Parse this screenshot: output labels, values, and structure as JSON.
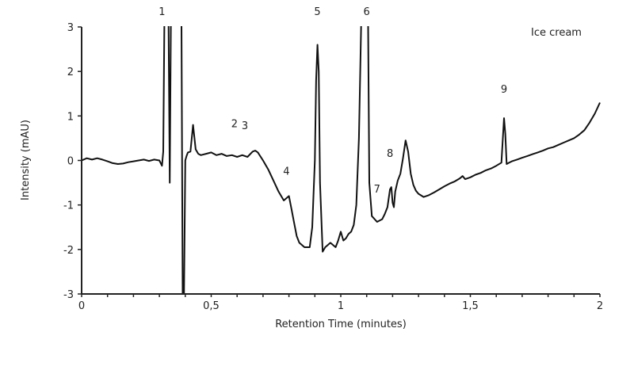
{
  "chart_data": {
    "type": "line",
    "title": "",
    "annotation": "Ice cream",
    "xlabel": "Retention Time (minutes)",
    "ylabel": "Intensity (mAU)",
    "xlim": [
      0,
      2
    ],
    "ylim": [
      -3,
      3
    ],
    "x_ticks": [
      "0",
      "0,5",
      "1",
      "1,5",
      "2"
    ],
    "x_tick_values": [
      0,
      0.5,
      1,
      1.5,
      2
    ],
    "x_minor_step": 0.1,
    "y_ticks": [
      "3",
      "2",
      "1",
      "0",
      "-1",
      "-2",
      "-3"
    ],
    "y_tick_values": [
      3,
      2,
      1,
      0,
      -1,
      -2,
      -3
    ],
    "grid": false,
    "legend": null,
    "peak_labels": [
      {
        "label": "1",
        "x": 0.31,
        "y": 3.3
      },
      {
        "label": "2",
        "x": 0.59,
        "y": 0.75
      },
      {
        "label": "3",
        "x": 0.63,
        "y": 0.7
      },
      {
        "label": "4",
        "x": 0.79,
        "y": -0.32
      },
      {
        "label": "5",
        "x": 0.91,
        "y": 3.3
      },
      {
        "label": "6",
        "x": 1.1,
        "y": 3.3
      },
      {
        "label": "7",
        "x": 1.14,
        "y": -0.72
      },
      {
        "label": "8",
        "x": 1.19,
        "y": 0.08
      },
      {
        "label": "9",
        "x": 1.63,
        "y": 1.52
      }
    ],
    "series": [
      {
        "name": "Ice cream",
        "color": "#111111",
        "x": [
          0.0,
          0.02,
          0.04,
          0.06,
          0.08,
          0.1,
          0.12,
          0.14,
          0.16,
          0.18,
          0.2,
          0.22,
          0.24,
          0.26,
          0.28,
          0.3,
          0.31,
          0.315,
          0.32,
          0.325,
          0.33,
          0.335,
          0.34,
          0.345,
          0.35,
          0.355,
          0.36,
          0.365,
          0.37,
          0.375,
          0.38,
          0.385,
          0.39,
          0.395,
          0.4,
          0.405,
          0.41,
          0.42,
          0.43,
          0.44,
          0.45,
          0.46,
          0.48,
          0.5,
          0.52,
          0.54,
          0.56,
          0.58,
          0.6,
          0.62,
          0.64,
          0.66,
          0.67,
          0.68,
          0.7,
          0.72,
          0.74,
          0.76,
          0.78,
          0.8,
          0.81,
          0.82,
          0.83,
          0.84,
          0.86,
          0.88,
          0.89,
          0.9,
          0.905,
          0.91,
          0.915,
          0.92,
          0.93,
          0.94,
          0.96,
          0.98,
          0.99,
          1.0,
          1.01,
          1.02,
          1.03,
          1.04,
          1.05,
          1.06,
          1.07,
          1.08,
          1.085,
          1.09,
          1.1,
          1.105,
          1.11,
          1.12,
          1.14,
          1.16,
          1.17,
          1.18,
          1.19,
          1.195,
          1.2,
          1.205,
          1.21,
          1.22,
          1.23,
          1.24,
          1.25,
          1.26,
          1.27,
          1.28,
          1.29,
          1.3,
          1.32,
          1.34,
          1.36,
          1.38,
          1.4,
          1.42,
          1.44,
          1.46,
          1.47,
          1.48,
          1.5,
          1.52,
          1.54,
          1.56,
          1.58,
          1.6,
          1.62,
          1.63,
          1.635,
          1.64,
          1.65,
          1.66,
          1.68,
          1.7,
          1.72,
          1.74,
          1.76,
          1.78,
          1.8,
          1.82,
          1.84,
          1.86,
          1.88,
          1.9,
          1.92,
          1.94,
          1.96,
          1.98,
          2.0
        ],
        "y": [
          0.0,
          0.05,
          0.02,
          0.05,
          0.02,
          -0.02,
          -0.06,
          -0.08,
          -0.07,
          -0.04,
          -0.02,
          0.0,
          0.02,
          -0.01,
          0.02,
          0.0,
          -0.12,
          0.2,
          3.5,
          3.5,
          3.5,
          3.5,
          -0.5,
          3.5,
          3.5,
          3.5,
          3.5,
          3.5,
          3.5,
          3.5,
          3.5,
          3.5,
          -3.0,
          -3.0,
          0.0,
          0.1,
          0.18,
          0.2,
          0.8,
          0.25,
          0.15,
          0.12,
          0.15,
          0.18,
          0.12,
          0.15,
          0.1,
          0.12,
          0.08,
          0.12,
          0.08,
          0.2,
          0.22,
          0.18,
          0.0,
          -0.2,
          -0.45,
          -0.7,
          -0.9,
          -0.8,
          -1.1,
          -1.4,
          -1.7,
          -1.85,
          -1.95,
          -1.95,
          -1.5,
          0.0,
          1.8,
          2.6,
          2.0,
          -0.5,
          -2.05,
          -1.95,
          -1.85,
          -1.95,
          -1.8,
          -1.6,
          -1.8,
          -1.75,
          -1.65,
          -1.6,
          -1.45,
          -1.0,
          0.5,
          3.5,
          3.5,
          3.5,
          3.5,
          3.5,
          -0.5,
          -1.25,
          -1.38,
          -1.32,
          -1.2,
          -1.05,
          -0.65,
          -0.6,
          -0.95,
          -1.05,
          -0.7,
          -0.45,
          -0.3,
          0.05,
          0.45,
          0.2,
          -0.3,
          -0.55,
          -0.68,
          -0.75,
          -0.82,
          -0.78,
          -0.72,
          -0.65,
          -0.58,
          -0.52,
          -0.47,
          -0.4,
          -0.35,
          -0.42,
          -0.38,
          -0.32,
          -0.28,
          -0.22,
          -0.18,
          -0.12,
          -0.05,
          0.95,
          0.6,
          -0.08,
          -0.05,
          -0.02,
          0.02,
          0.06,
          0.1,
          0.14,
          0.18,
          0.22,
          0.27,
          0.3,
          0.35,
          0.4,
          0.45,
          0.5,
          0.58,
          0.68,
          0.85,
          1.05,
          1.3
        ]
      }
    ]
  }
}
